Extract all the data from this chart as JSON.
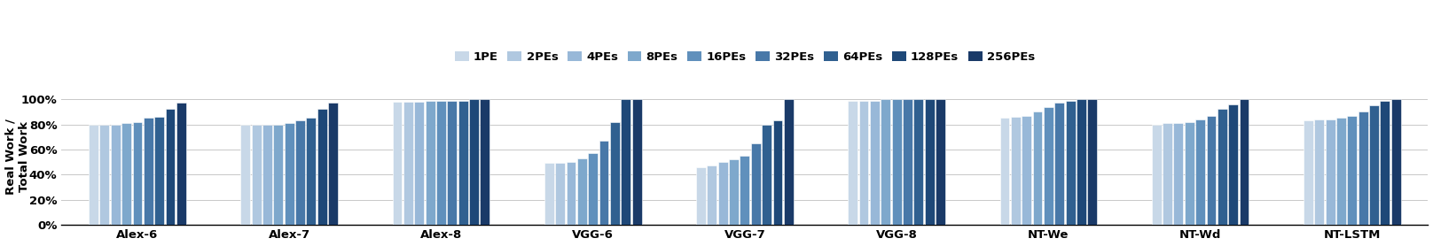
{
  "categories": [
    "Alex-6",
    "Alex-7",
    "Alex-8",
    "VGG-6",
    "VGG-7",
    "VGG-8",
    "NT-We",
    "NT-Wd",
    "NT-LSTM"
  ],
  "pe_labels": [
    "1PE",
    "2PEs",
    "4PEs",
    "8PEs",
    "16PEs",
    "32PEs",
    "64PEs",
    "128PEs",
    "256PEs"
  ],
  "colors": [
    "#c8d8e8",
    "#b0c8e0",
    "#98b8d8",
    "#7ea8cc",
    "#6090bc",
    "#4878a8",
    "#306090",
    "#1e4878",
    "#1a3a68"
  ],
  "values": {
    "Alex-6": [
      0.8,
      0.8,
      0.8,
      0.81,
      0.82,
      0.85,
      0.86,
      0.92,
      0.97
    ],
    "Alex-7": [
      0.8,
      0.8,
      0.8,
      0.8,
      0.81,
      0.83,
      0.85,
      0.92,
      0.97
    ],
    "Alex-8": [
      0.98,
      0.98,
      0.98,
      0.99,
      0.99,
      0.99,
      0.99,
      1.0,
      1.0
    ],
    "VGG-6": [
      0.49,
      0.49,
      0.5,
      0.53,
      0.57,
      0.67,
      0.82,
      1.0,
      1.0
    ],
    "VGG-7": [
      0.46,
      0.47,
      0.5,
      0.52,
      0.55,
      0.65,
      0.8,
      0.83,
      1.0
    ],
    "VGG-8": [
      0.99,
      0.99,
      0.99,
      1.0,
      1.0,
      1.0,
      1.0,
      1.0,
      1.0
    ],
    "NT-We": [
      0.85,
      0.86,
      0.87,
      0.9,
      0.94,
      0.97,
      0.99,
      1.0,
      1.0
    ],
    "NT-Wd": [
      0.8,
      0.81,
      0.81,
      0.82,
      0.84,
      0.87,
      0.92,
      0.96,
      1.0
    ],
    "NT-LSTM": [
      0.83,
      0.84,
      0.84,
      0.85,
      0.87,
      0.9,
      0.95,
      0.99,
      1.0
    ]
  },
  "ylabel": "Real Work /\nTotal Work",
  "ylim": [
    0.0,
    1.08
  ],
  "yticks": [
    0.0,
    0.2,
    0.4,
    0.6,
    0.8,
    1.0
  ],
  "ytick_labels": [
    "0%",
    "20%",
    "40%",
    "60%",
    "80%",
    "100%"
  ],
  "background_color": "#ffffff",
  "grid_color": "#c8c8c8"
}
